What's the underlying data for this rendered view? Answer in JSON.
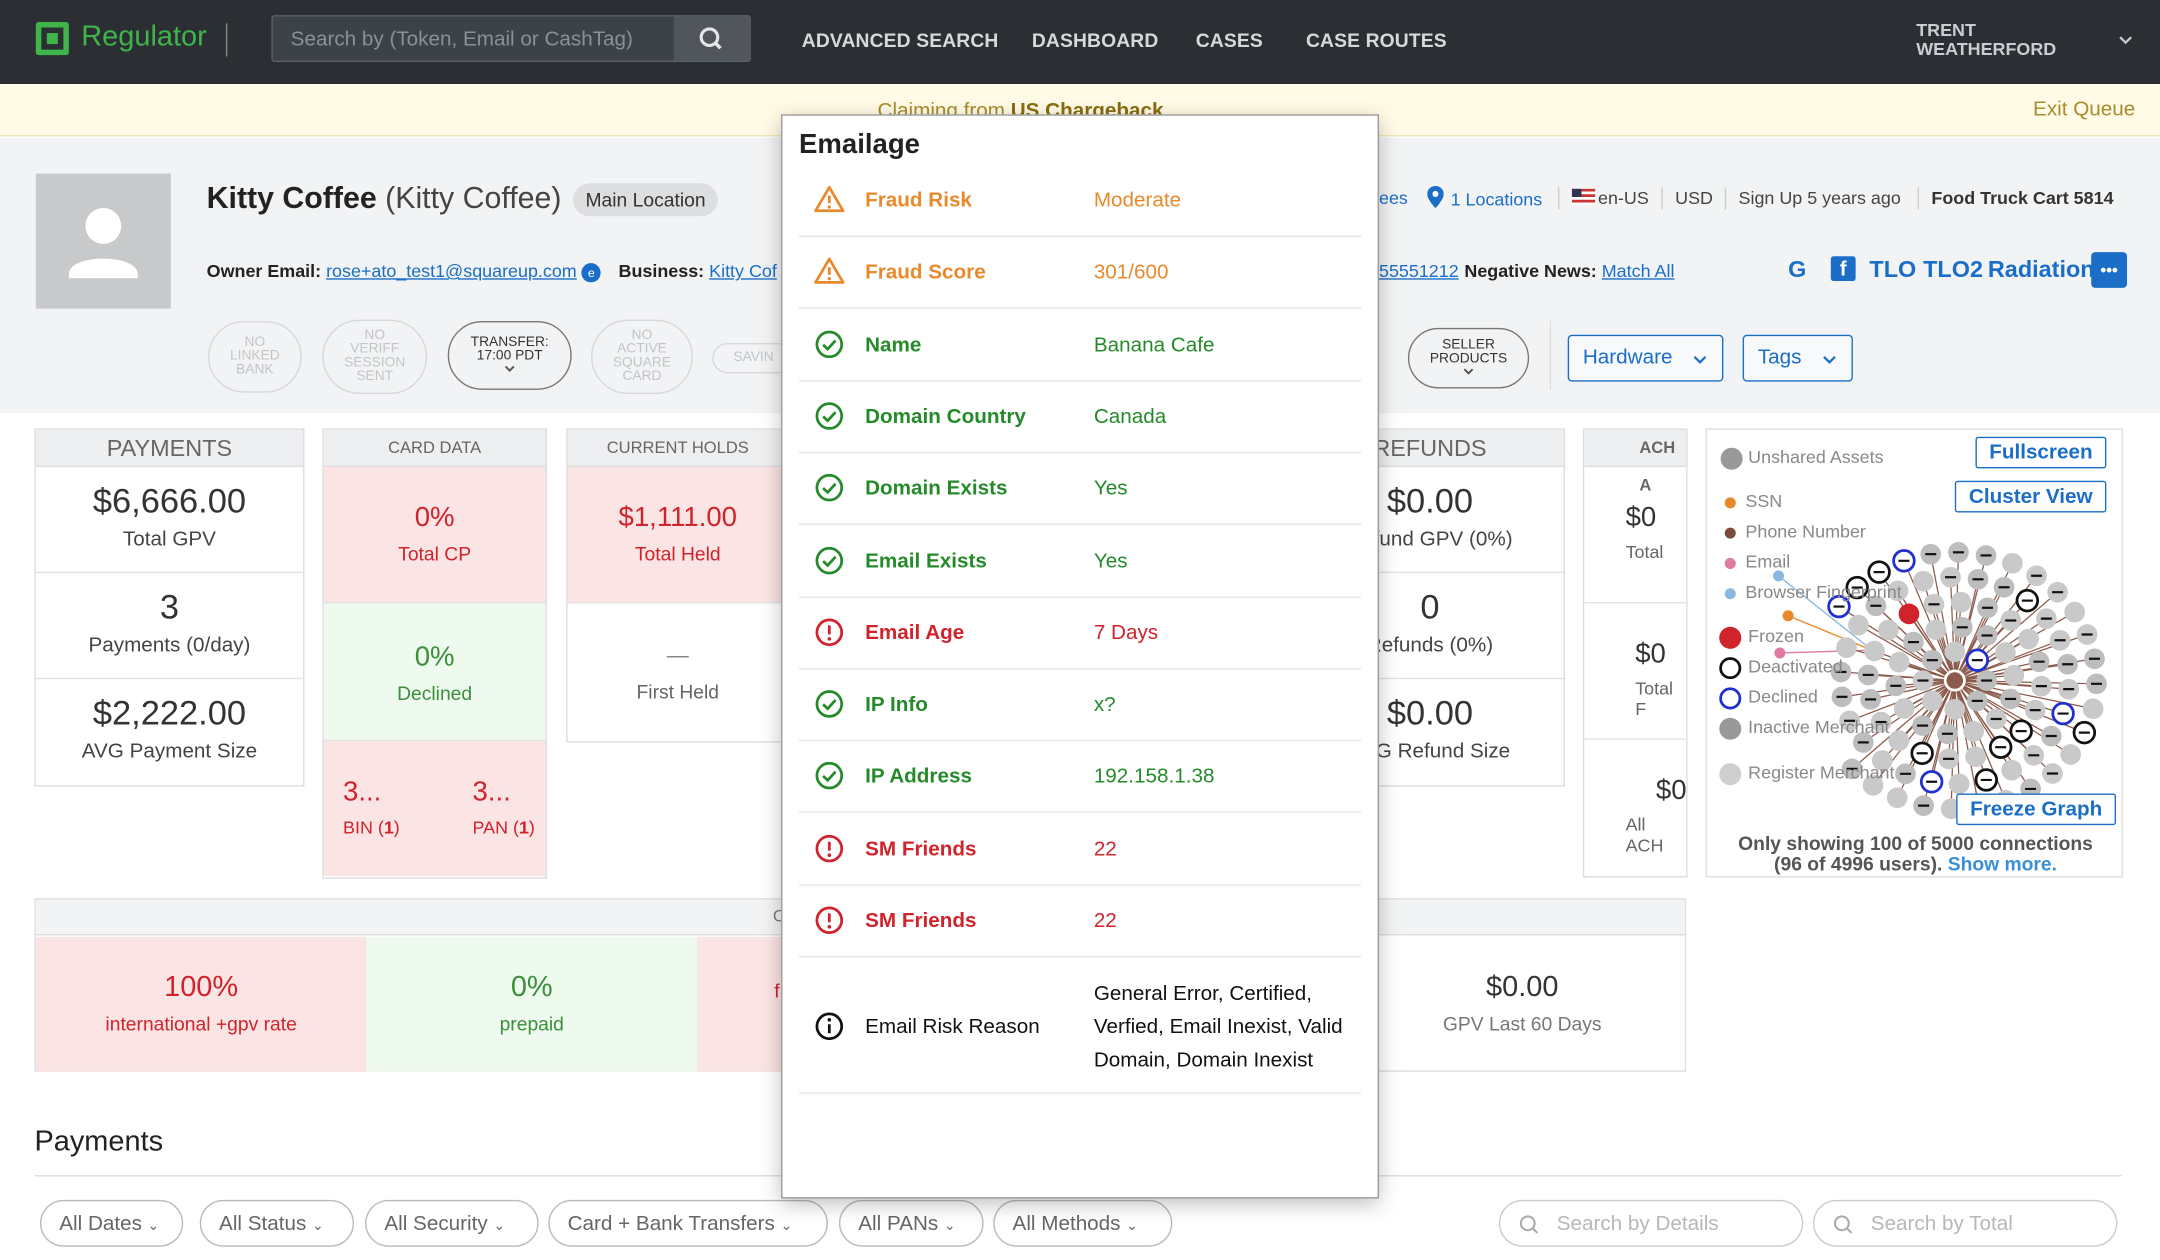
{
  "app": {
    "name": "Regulator"
  },
  "search": {
    "placeholder": "Search by (Token, Email or CashTag)"
  },
  "nav": [
    "ADVANCED SEARCH",
    "DASHBOARD",
    "CASES",
    "CASE ROUTES"
  ],
  "user": {
    "first": "TRENT",
    "last": "WEATHERFORD"
  },
  "banner": {
    "prefix": "Claiming from ",
    "queue": "US Chargeback",
    "exit": "Exit Queue"
  },
  "merchant": {
    "name": "Kitty Coffee",
    "alias": "(Kitty Coffee)",
    "location_badge": "Main Location",
    "owner_email_label": "Owner Email:",
    "owner_email": "rose+ato_test1@squareup.com",
    "business_label": "Business:",
    "business": "Kitty Cof",
    "phone_fragment": "55551212",
    "negative_news_label": "Negative News:",
    "negative_news": "Match All",
    "employees_fragment": "ees",
    "locations": "1 Locations",
    "locale": "en-US",
    "currency": "USD",
    "signup": "Sign Up 5 years ago",
    "category": "Food Truck Cart 5814"
  },
  "social": [
    "G",
    "f",
    "TLO",
    "TLO2",
    "Radiation",
    "•••"
  ],
  "pills": [
    {
      "lines": [
        "NO",
        "LINKED",
        "BANK"
      ]
    },
    {
      "lines": [
        "NO",
        "VERIFF",
        "SESSION",
        "SENT"
      ]
    },
    {
      "lines": [
        "TRANSFER:",
        "17:00 PDT"
      ]
    },
    {
      "lines": [
        "NO",
        "ACTIVE",
        "SQUARE",
        "CARD"
      ]
    },
    {
      "lines": [
        "SAVIN"
      ]
    },
    {
      "lines": [
        "SELLER",
        "PRODUCTS"
      ]
    }
  ],
  "dropdowns": {
    "hardware": "Hardware",
    "tags": "Tags"
  },
  "payments_card": {
    "header": "PAYMENTS",
    "rows": [
      {
        "value": "$6,666.00",
        "label": "Total GPV"
      },
      {
        "value": "3",
        "label": "Payments (0/day)"
      },
      {
        "value": "$2,222.00",
        "label": "AVG Payment Size"
      }
    ]
  },
  "card_data": {
    "header": "CARD DATA",
    "total_cp": {
      "value": "0%",
      "label": "Total CP"
    },
    "declined": {
      "value": "0%",
      "label": "Declined"
    },
    "bin": {
      "value": "3...",
      "label": "BIN",
      "count": "1"
    },
    "pan": {
      "value": "3...",
      "label": "PAN",
      "count": "1"
    }
  },
  "holds": {
    "header": "CURRENT HOLDS",
    "total": {
      "value": "$1,111.00",
      "label": "Total Held"
    },
    "first": {
      "value": "—",
      "label": "First Held"
    }
  },
  "refunds": {
    "header": "REFUNDS",
    "rows": [
      {
        "value": "$0.00",
        "label": "Refund GPV (0%)"
      },
      {
        "value": "0",
        "label": "Refunds (0%)"
      },
      {
        "value": "$0.00",
        "label": "AVG Refund Size"
      }
    ]
  },
  "ach": {
    "header": "ACH A",
    "rows": [
      {
        "value": "$0",
        "label": "Total"
      },
      {
        "value": "$0",
        "label": "Total F"
      },
      {
        "value": "$0",
        "label": "All ACH"
      }
    ]
  },
  "graph": {
    "unshared": "Unshared Assets",
    "fullscreen": "Fullscreen",
    "cluster": "Cluster View",
    "freeze": "Freeze Graph",
    "legend": [
      {
        "label": "SSN",
        "color": "#e8892b"
      },
      {
        "label": "Phone Number",
        "color": "#7a4a3a"
      },
      {
        "label": "Email",
        "color": "#e07aa0"
      },
      {
        "label": "Browser Fingerprint",
        "color": "#8ab8e0"
      },
      {
        "label": "Frozen",
        "color": "#d0232b"
      },
      {
        "label": "Deactivated",
        "color": "#111111"
      },
      {
        "label": "Declined",
        "color": "#1f2fd0"
      },
      {
        "label": "Inactive Merchant",
        "color": "#999999"
      },
      {
        "label": "Register Merchant",
        "color": "#cfcfcf"
      }
    ],
    "footer1": "Only showing 100 of 5000 connections",
    "footer2": "(96 of 4996 users).",
    "more": "Show more."
  },
  "metrics": {
    "header": "C",
    "cells": [
      {
        "value": "100%",
        "label": "international +gpv rate"
      },
      {
        "value": "0%",
        "label": "prepaid"
      },
      {
        "value": "",
        "label": "f"
      },
      {
        "value": "$0.00",
        "label": "GPV Last 60 Days"
      }
    ]
  },
  "payments_section": {
    "title": "Payments",
    "filters": [
      "All Dates",
      "All Status",
      "All Security",
      "Card + Bank Transfers",
      "All PANs",
      "All Methods"
    ],
    "search_details": "Search by Details",
    "search_total": "Search by Total"
  },
  "emailage": {
    "title": "Emailage",
    "rows": [
      {
        "label": "Fraud Risk",
        "value": "Moderate",
        "status": "warn"
      },
      {
        "label": "Fraud Score",
        "value": "301/600",
        "status": "warn"
      },
      {
        "label": "Name",
        "value": "Banana Cafe",
        "status": "ok"
      },
      {
        "label": "Domain Country",
        "value": "Canada",
        "status": "ok"
      },
      {
        "label": "Domain Exists",
        "value": "Yes",
        "status": "ok"
      },
      {
        "label": "Email Exists",
        "value": "Yes",
        "status": "ok"
      },
      {
        "label": "Email Age",
        "value": "7 Days",
        "status": "bad"
      },
      {
        "label": "IP Info",
        "value": "x?",
        "status": "ok"
      },
      {
        "label": "IP Address",
        "value": "192.158.1.38",
        "status": "ok"
      },
      {
        "label": "SM Friends",
        "value": "22",
        "status": "bad"
      },
      {
        "label": "SM Friends",
        "value": "22",
        "status": "bad"
      }
    ],
    "reason_label": "Email Risk Reason",
    "reason_lines": [
      "General Error, Certified,",
      "Verfied, Email Inexist, Valid",
      "Domain, Domain Inexist"
    ]
  },
  "colors": {
    "brand": "#3fb449",
    "link": "#1a6ec8",
    "warn": "#e8892b",
    "ok": "#258a2a",
    "bad": "#d0232b"
  }
}
